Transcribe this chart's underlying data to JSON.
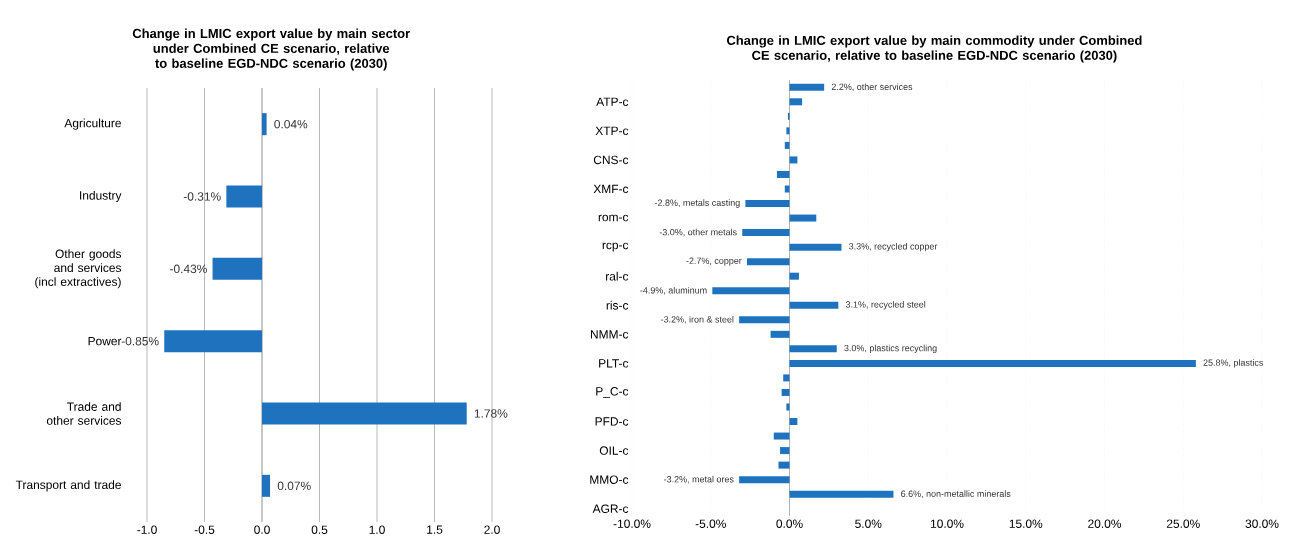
{
  "chart_data": [
    {
      "type": "bar",
      "orientation": "horizontal",
      "title": "Change in LMIC export value by main sector under Combined CE scenario, relative to baseline EGD-NDC scenario (2030)",
      "categories": [
        "Agriculture",
        "Industry",
        "Other goods and services (incl extractives)",
        "Power",
        "Trade and other services",
        "Transport and trade"
      ],
      "values": [
        0.04,
        -0.31,
        -0.43,
        -0.85,
        1.78,
        0.07
      ],
      "value_labels": [
        "0.04%",
        "-0.31%",
        "-0.43%",
        "-0.85%",
        "1.78%",
        "0.07%"
      ],
      "color": "#1f73be",
      "xlim": [
        -1,
        2
      ],
      "xticks": [
        {
          "value": -1,
          "label": "-1.0"
        },
        {
          "value": -0.5,
          "label": "-0.5"
        },
        {
          "value": 0,
          "label": "0.0"
        },
        {
          "value": 0.5,
          "label": "0.5"
        },
        {
          "value": 1,
          "label": "1.0"
        },
        {
          "value": 1.5,
          "label": "1.5"
        },
        {
          "value": 2,
          "label": "2.0"
        }
      ],
      "grid": "x"
    },
    {
      "type": "bar",
      "orientation": "horizontal",
      "title": "Change in LMIC export value by main commodity under Combined CE scenario, relative to baseline EGD-NDC scenario (2030)",
      "categories": [
        null,
        "ATP-c",
        null,
        "XTP-c",
        null,
        "CNS-c",
        null,
        "XMF-c",
        null,
        "rom-c",
        null,
        "rcp-c",
        null,
        "ral-c",
        null,
        "ris-c",
        null,
        "NMM-c",
        null,
        "PLT-c",
        null,
        "P_C-c",
        null,
        "PFD-c",
        null,
        "OIL-c",
        null,
        "MMO-c",
        null,
        "AGR-c"
      ],
      "values": [
        2.2,
        0.8,
        -0.1,
        -0.2,
        -0.3,
        0.5,
        -0.8,
        -0.3,
        -2.8,
        1.7,
        -3.0,
        3.3,
        -2.7,
        0.6,
        -4.9,
        3.1,
        -3.2,
        -1.2,
        3.0,
        25.8,
        -0.4,
        -0.5,
        -0.2,
        0.5,
        -1.0,
        -0.6,
        -0.7,
        -3.2,
        6.6,
        null
      ],
      "value_labels": [
        "2.2%, other services",
        null,
        null,
        null,
        null,
        null,
        null,
        null,
        "-2.8%, metals casting",
        null,
        "-3.0%, other metals",
        "3.3%, recycled copper",
        "-2.7%, copper",
        null,
        "-4.9%, aluminum",
        "3.1%, recycled steel",
        "-3.2%, iron & steel",
        null,
        "3.0%, plastics recycling",
        "25.8%, plastics",
        null,
        null,
        null,
        null,
        null,
        null,
        null,
        "-3.2%, metal ores",
        "6.6%, non-metallic minerals",
        null
      ],
      "color": "#1f73be",
      "xlim": [
        -10,
        30
      ],
      "xticks": [
        {
          "value": -10,
          "label": "-10.0%"
        },
        {
          "value": -5,
          "label": "-5.0%"
        },
        {
          "value": 0,
          "label": "0.0%"
        },
        {
          "value": 5,
          "label": "5.0%"
        },
        {
          "value": 10,
          "label": "10.0%"
        },
        {
          "value": 15,
          "label": "15.0%"
        },
        {
          "value": 20,
          "label": "20.0%"
        },
        {
          "value": 25,
          "label": "25.0%"
        },
        {
          "value": 30,
          "label": "30.0%"
        }
      ],
      "grid": "x"
    }
  ]
}
